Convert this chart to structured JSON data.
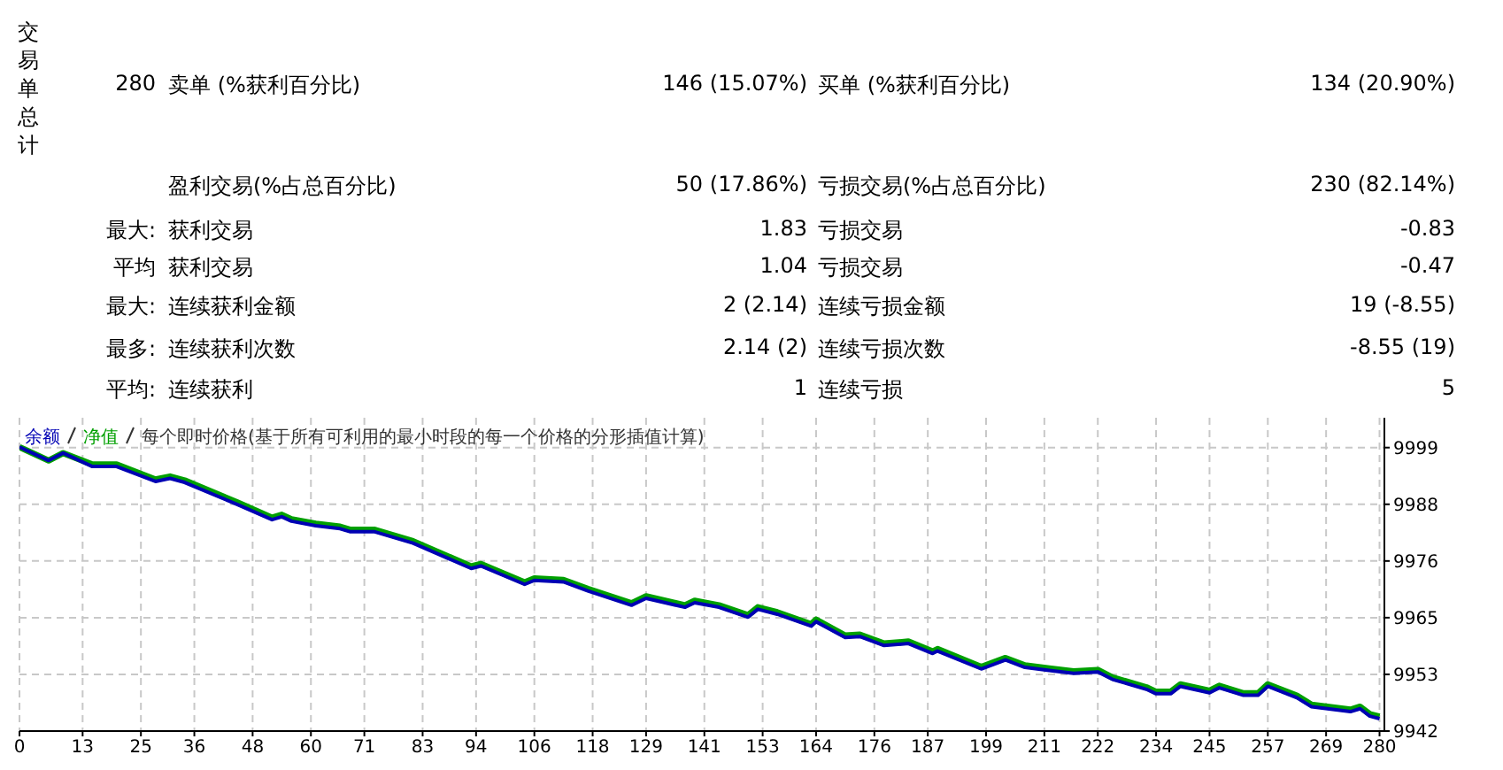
{
  "chart_data": [
    {
      "type": "other",
      "annotations": [
        "交易单总计",
        "280",
        "卖单 (%获利百分比)",
        "146 (15.07%)",
        "买单 (%获利百分比)",
        "134 (20.90%)",
        null,
        "盈利交易(%占总百分比)",
        "50 (17.86%)",
        "亏损交易(%占总百分比)",
        "230 (82.14%)",
        "最大:",
        "获利交易",
        "1.83",
        "亏损交易",
        "-0.83",
        "平均",
        "获利交易",
        "1.04",
        "亏损交易",
        "-0.47",
        "最大:",
        "连续获利金额",
        "2 (2.14)",
        "连续亏损金额",
        "19 (-8.55)",
        "最多:",
        "连续获利次数",
        "2.14 (2)",
        "连续亏损次数",
        "-8.55 (19)",
        "平均:",
        "连续获利",
        "1",
        "连续亏损",
        "5"
      ]
    },
    {
      "type": "line",
      "subtitle": "每个即时价格(基于所有可利用的最小时段的每一个价格的分形插值计算)",
      "legend": "top left",
      "grid": true,
      "marker": "none",
      "line_style": "solid",
      "x": [
        0,
        6,
        9,
        15,
        20,
        28,
        31,
        34,
        45,
        52,
        54,
        56,
        61,
        66,
        68,
        73,
        81,
        93,
        95,
        104,
        106,
        112,
        117,
        126,
        129,
        137,
        139,
        144,
        150,
        152,
        156,
        163,
        164,
        170,
        173,
        178,
        183,
        188,
        189,
        198,
        203,
        207,
        212,
        217,
        222,
        225,
        232,
        234,
        237,
        239,
        245,
        247,
        252,
        255,
        257,
        263,
        266,
        274,
        276,
        278,
        280
      ],
      "series": [
        {
          "name": "余额",
          "color": "#0000b4",
          "values": [
            9999.1,
            9996.4,
            9997.9,
            9995.2,
            9995.2,
            9992.2,
            9992.8,
            9992,
            9987.5,
            9984.5,
            9985.1,
            9984.2,
            9983.3,
            9982.7,
            9982.1,
            9982.1,
            9979.8,
            9974.7,
            9975.2,
            9971.5,
            9972.3,
            9972,
            9970.2,
            9967.3,
            9968.7,
            9966.9,
            9967.8,
            9966.9,
            9964.9,
            9966.5,
            9965.5,
            9963.1,
            9964,
            9960.8,
            9961,
            9959.2,
            9959.6,
            9957.6,
            9958.1,
            9954.5,
            9956.3,
            9954.8,
            9954.2,
            9953.6,
            9953.9,
            9952.4,
            9950.4,
            9949.5,
            9949.5,
            9951,
            9949.7,
            9950.7,
            9949.2,
            9949.2,
            9951,
            9948.7,
            9946.9,
            9945.9,
            9946.5,
            9945,
            9944.5
          ]
        },
        {
          "name": "净值",
          "color": "#00a000",
          "values": [
            9999.1,
            9996.4,
            9997.9,
            9995.6,
            9995.6,
            9992.6,
            9993.2,
            9992.4,
            9987.9,
            9984.9,
            9985.5,
            9984.6,
            9983.7,
            9983.1,
            9982.5,
            9982.5,
            9980.2,
            9975.1,
            9975.6,
            9971.9,
            9972.7,
            9972.4,
            9970.6,
            9967.7,
            9969.1,
            9967.3,
            9968.2,
            9967.3,
            9965.3,
            9966.9,
            9965.9,
            9963.5,
            9964.4,
            9961.2,
            9961.4,
            9959.6,
            9960,
            9958,
            9958.5,
            9954.9,
            9956.7,
            9955.2,
            9954.6,
            9954,
            9954.3,
            9952.8,
            9950.8,
            9949.9,
            9949.9,
            9951.4,
            9950.1,
            9951.1,
            9949.6,
            9949.6,
            9951.4,
            9949.1,
            9947.3,
            9946.3,
            9946.9,
            9945.4,
            9944.9
          ]
        }
      ],
      "xlim": [
        0,
        281
      ],
      "xticks": [
        0,
        13,
        25,
        36,
        48,
        60,
        71,
        83,
        94,
        106,
        118,
        129,
        141,
        153,
        164,
        176,
        187,
        199,
        211,
        222,
        234,
        245,
        257,
        269,
        280
      ],
      "ylim": [
        9942,
        10005
      ],
      "yticks": [
        {
          "value": 9942,
          "label": "9942"
        },
        {
          "value": 9953.4,
          "label": "9953"
        },
        {
          "value": 9964.8,
          "label": "9965"
        },
        {
          "value": 9976.2,
          "label": "9976"
        },
        {
          "value": 9987.6,
          "label": "9988"
        },
        {
          "value": 9999,
          "label": "9999"
        }
      ]
    }
  ]
}
